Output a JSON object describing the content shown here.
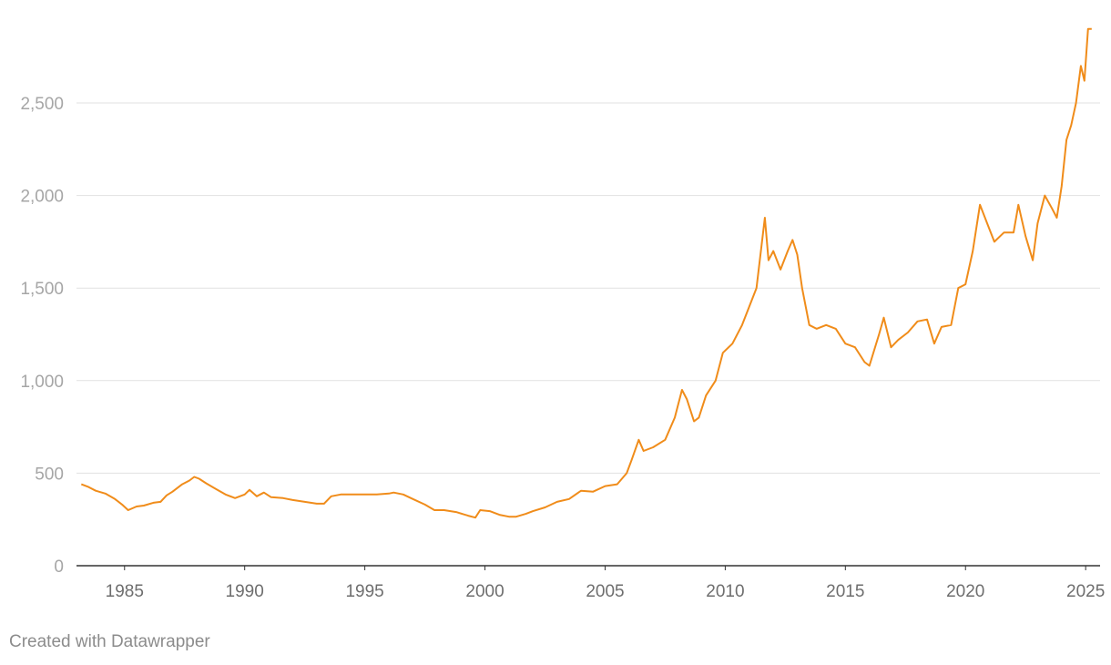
{
  "chart_data": {
    "type": "line",
    "title": "",
    "xlabel": "",
    "ylabel": "",
    "xlim": [
      1983.0,
      2025.6
    ],
    "ylim": [
      0,
      2900
    ],
    "y_ticks": [
      0,
      500,
      1000,
      1500,
      2000,
      2500
    ],
    "y_tick_labels": [
      "0",
      "500",
      "1,000",
      "1,500",
      "2,000",
      "2,500"
    ],
    "x_ticks": [
      1985,
      1990,
      1995,
      2000,
      2005,
      2010,
      2015,
      2020,
      2025
    ],
    "x_tick_labels": [
      "1985",
      "1990",
      "1995",
      "2000",
      "2005",
      "2010",
      "2015",
      "2020",
      "2025"
    ],
    "grid": "horizontal",
    "series": [
      {
        "color": "#f08c1a",
        "points": [
          [
            1983.2,
            440
          ],
          [
            1983.5,
            425
          ],
          [
            1983.8,
            405
          ],
          [
            1984.2,
            390
          ],
          [
            1984.6,
            360
          ],
          [
            1984.9,
            330
          ],
          [
            1985.15,
            300
          ],
          [
            1985.5,
            320
          ],
          [
            1985.8,
            325
          ],
          [
            1986.2,
            340
          ],
          [
            1986.5,
            345
          ],
          [
            1986.75,
            380
          ],
          [
            1987.0,
            400
          ],
          [
            1987.4,
            440
          ],
          [
            1987.7,
            460
          ],
          [
            1987.9,
            480
          ],
          [
            1988.1,
            470
          ],
          [
            1988.4,
            445
          ],
          [
            1988.8,
            415
          ],
          [
            1989.2,
            385
          ],
          [
            1989.6,
            365
          ],
          [
            1990.0,
            385
          ],
          [
            1990.2,
            410
          ],
          [
            1990.5,
            375
          ],
          [
            1990.8,
            395
          ],
          [
            1991.1,
            370
          ],
          [
            1991.6,
            365
          ],
          [
            1992.0,
            355
          ],
          [
            1992.5,
            345
          ],
          [
            1993.0,
            335
          ],
          [
            1993.3,
            335
          ],
          [
            1993.6,
            375
          ],
          [
            1994.0,
            385
          ],
          [
            1994.5,
            385
          ],
          [
            1995.0,
            385
          ],
          [
            1995.5,
            385
          ],
          [
            1996.0,
            390
          ],
          [
            1996.2,
            395
          ],
          [
            1996.6,
            385
          ],
          [
            1997.0,
            360
          ],
          [
            1997.5,
            330
          ],
          [
            1997.9,
            300
          ],
          [
            1998.3,
            300
          ],
          [
            1998.8,
            290
          ],
          [
            1999.3,
            270
          ],
          [
            1999.6,
            260
          ],
          [
            1999.8,
            300
          ],
          [
            2000.2,
            295
          ],
          [
            2000.6,
            275
          ],
          [
            2001.0,
            265
          ],
          [
            2001.3,
            265
          ],
          [
            2001.7,
            280
          ],
          [
            2002.0,
            295
          ],
          [
            2002.5,
            315
          ],
          [
            2003.0,
            345
          ],
          [
            2003.5,
            360
          ],
          [
            2004.0,
            405
          ],
          [
            2004.5,
            400
          ],
          [
            2005.0,
            430
          ],
          [
            2005.5,
            440
          ],
          [
            2005.9,
            500
          ],
          [
            2006.1,
            570
          ],
          [
            2006.4,
            680
          ],
          [
            2006.6,
            620
          ],
          [
            2007.0,
            640
          ],
          [
            2007.5,
            680
          ],
          [
            2007.9,
            800
          ],
          [
            2008.2,
            950
          ],
          [
            2008.4,
            900
          ],
          [
            2008.7,
            780
          ],
          [
            2008.9,
            800
          ],
          [
            2009.2,
            920
          ],
          [
            2009.6,
            1000
          ],
          [
            2009.9,
            1150
          ],
          [
            2010.3,
            1200
          ],
          [
            2010.7,
            1300
          ],
          [
            2011.0,
            1400
          ],
          [
            2011.3,
            1500
          ],
          [
            2011.65,
            1880
          ],
          [
            2011.8,
            1650
          ],
          [
            2012.0,
            1700
          ],
          [
            2012.3,
            1600
          ],
          [
            2012.6,
            1700
          ],
          [
            2012.8,
            1760
          ],
          [
            2013.0,
            1680
          ],
          [
            2013.2,
            1500
          ],
          [
            2013.5,
            1300
          ],
          [
            2013.8,
            1280
          ],
          [
            2014.2,
            1300
          ],
          [
            2014.6,
            1280
          ],
          [
            2015.0,
            1200
          ],
          [
            2015.4,
            1180
          ],
          [
            2015.8,
            1100
          ],
          [
            2016.0,
            1080
          ],
          [
            2016.4,
            1250
          ],
          [
            2016.6,
            1340
          ],
          [
            2016.9,
            1180
          ],
          [
            2017.2,
            1220
          ],
          [
            2017.6,
            1260
          ],
          [
            2018.0,
            1320
          ],
          [
            2018.4,
            1330
          ],
          [
            2018.7,
            1200
          ],
          [
            2019.0,
            1290
          ],
          [
            2019.4,
            1300
          ],
          [
            2019.7,
            1500
          ],
          [
            2020.0,
            1520
          ],
          [
            2020.3,
            1700
          ],
          [
            2020.6,
            1950
          ],
          [
            2020.9,
            1850
          ],
          [
            2021.2,
            1750
          ],
          [
            2021.6,
            1800
          ],
          [
            2022.0,
            1800
          ],
          [
            2022.2,
            1950
          ],
          [
            2022.5,
            1780
          ],
          [
            2022.8,
            1650
          ],
          [
            2023.0,
            1850
          ],
          [
            2023.3,
            2000
          ],
          [
            2023.6,
            1930
          ],
          [
            2023.8,
            1880
          ],
          [
            2024.0,
            2050
          ],
          [
            2024.2,
            2300
          ],
          [
            2024.4,
            2380
          ],
          [
            2024.6,
            2500
          ],
          [
            2024.8,
            2700
          ],
          [
            2024.95,
            2620
          ],
          [
            2025.1,
            2900
          ],
          [
            2025.25,
            2900
          ]
        ]
      }
    ]
  },
  "footer": {
    "credit": "Created with Datawrapper"
  }
}
